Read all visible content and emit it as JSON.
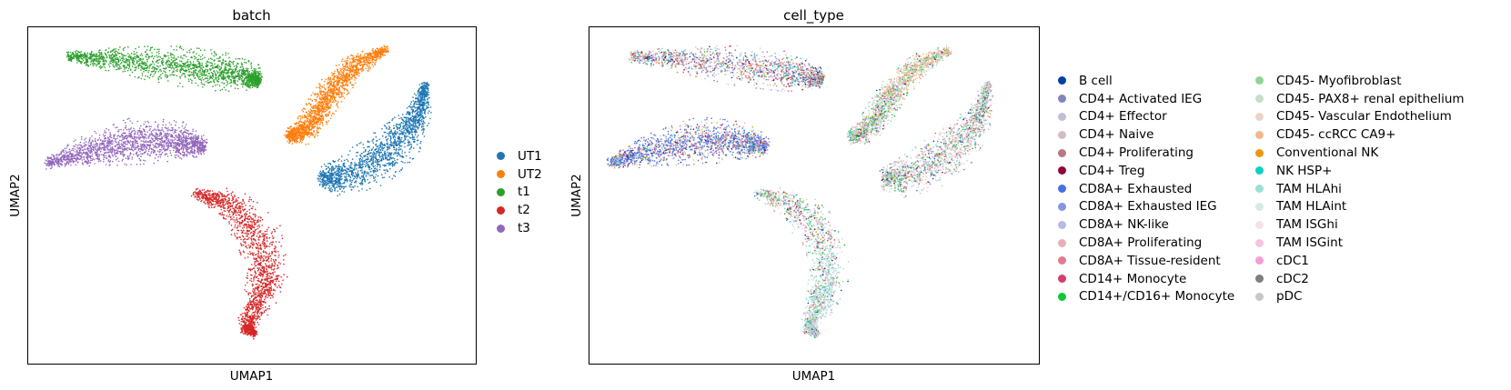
{
  "chart_data": [
    {
      "type": "scatter",
      "title": "batch",
      "xlabel": "UMAP1",
      "ylabel": "UMAP2",
      "legend": "right",
      "grid": false,
      "clusters": [
        {
          "name": "UT1",
          "color": "#1f77b4"
        },
        {
          "name": "UT2",
          "color": "#ff7f0e"
        },
        {
          "name": "t1",
          "color": "#2ca02c"
        },
        {
          "name": "t2",
          "color": "#d62728"
        },
        {
          "name": "t3",
          "color": "#9467bd"
        }
      ]
    },
    {
      "type": "scatter",
      "title": "cell_type",
      "xlabel": "UMAP1",
      "ylabel": "UMAP2",
      "legend": "right",
      "grid": false,
      "categories": [
        {
          "name": "B cell",
          "color": "#023fa5"
        },
        {
          "name": "CD4+ Activated IEG",
          "color": "#7d87b9"
        },
        {
          "name": "CD4+ Effector",
          "color": "#bec1d4"
        },
        {
          "name": "CD4+ Naive",
          "color": "#d6bcc0"
        },
        {
          "name": "CD4+ Proliferating",
          "color": "#bb7784"
        },
        {
          "name": "CD4+ Treg",
          "color": "#8e063b"
        },
        {
          "name": "CD8A+ Exhausted",
          "color": "#4a6fe3"
        },
        {
          "name": "CD8A+ Exhausted IEG",
          "color": "#8595e1"
        },
        {
          "name": "CD8A+ NK-like",
          "color": "#b5bbe3"
        },
        {
          "name": "CD8A+ Proliferating",
          "color": "#e6afb9"
        },
        {
          "name": "CD8A+ Tissue-resident",
          "color": "#e07b91"
        },
        {
          "name": "CD14+ Monocyte",
          "color": "#d33f6a"
        },
        {
          "name": "CD14+/CD16+ Monocyte",
          "color": "#11c638"
        },
        {
          "name": "CD45- Myofibroblast",
          "color": "#8dd593"
        },
        {
          "name": "CD45- PAX8+ renal epithelium",
          "color": "#c6dec7"
        },
        {
          "name": "CD45- Vascular Endothelium",
          "color": "#ead3c6"
        },
        {
          "name": "CD45- ccRCC CA9+",
          "color": "#f0b98d"
        },
        {
          "name": "Conventional NK",
          "color": "#ef9708"
        },
        {
          "name": "NK HSP+",
          "color": "#0fcfc0"
        },
        {
          "name": "TAM HLAhi",
          "color": "#9cded6"
        },
        {
          "name": "TAM HLAint",
          "color": "#d5eae7"
        },
        {
          "name": "TAM ISGhi",
          "color": "#f3e1eb"
        },
        {
          "name": "TAM ISGint",
          "color": "#f6c4e1"
        },
        {
          "name": "cDC1",
          "color": "#f79cd4"
        },
        {
          "name": "cDC2",
          "color": "#7f7f7f"
        },
        {
          "name": "pDC",
          "color": "#c7c7c7"
        }
      ]
    }
  ]
}
